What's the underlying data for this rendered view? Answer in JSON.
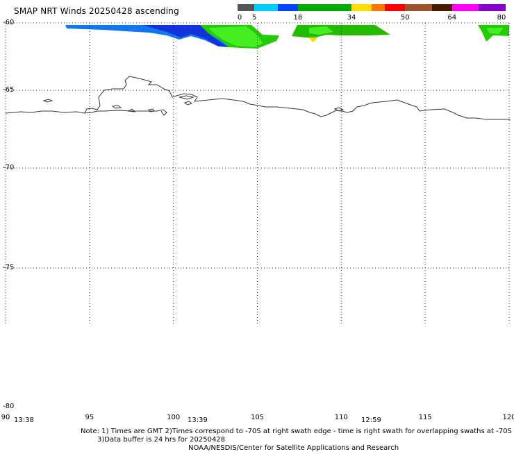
{
  "title": "SMAP NRT Winds 20250428 ascending",
  "colorbar": {
    "segments": [
      {
        "from": 0,
        "to": 5,
        "color": "#555555"
      },
      {
        "from": 5,
        "to": 12,
        "color": "#00ccff"
      },
      {
        "from": 12,
        "to": 18,
        "color": "#0044ff"
      },
      {
        "from": 18,
        "to": 34,
        "color": "#00aa00"
      },
      {
        "from": 34,
        "to": 40,
        "color": "#ffdd00"
      },
      {
        "from": 40,
        "to": 44,
        "color": "#ff7700"
      },
      {
        "from": 44,
        "to": 50,
        "color": "#ff0000"
      },
      {
        "from": 50,
        "to": 58,
        "color": "#a0522d"
      },
      {
        "from": 58,
        "to": 64,
        "color": "#4a1a00"
      },
      {
        "from": 64,
        "to": 72,
        "color": "#ff00ff"
      },
      {
        "from": 72,
        "to": 80,
        "color": "#8800cc"
      }
    ],
    "tick_labels": [
      "0",
      "5",
      "18",
      "34",
      "50",
      "64",
      "80"
    ],
    "tick_values": [
      0,
      5,
      18,
      34,
      50,
      64,
      80
    ],
    "range": [
      0,
      80
    ]
  },
  "map": {
    "lat_range": [
      -80,
      -60
    ],
    "lon_range": [
      90,
      120
    ],
    "lat_labels": [
      "-60",
      "-65",
      "-70",
      "-75",
      "-80"
    ],
    "lon_labels": [
      "90",
      "95",
      "100",
      "105",
      "110",
      "115",
      "120"
    ],
    "lat_values": [
      -60,
      -65,
      -70,
      -75,
      -80
    ],
    "lon_values": [
      90,
      95,
      100,
      105,
      110,
      115,
      120
    ],
    "gridlines": true
  },
  "swath_times": [
    "13:38",
    "13:39",
    "12:59"
  ],
  "notes": {
    "line1": "Note: 1) Times are GMT 2)Times correspond to -70S at right swath edge - time is right swath for overlapping swaths at -70S",
    "line2": "3)Data buffer is 24 hrs for 20250428",
    "line3": "NOAA/NESDIS/Center for Satellite Applications and Research"
  }
}
